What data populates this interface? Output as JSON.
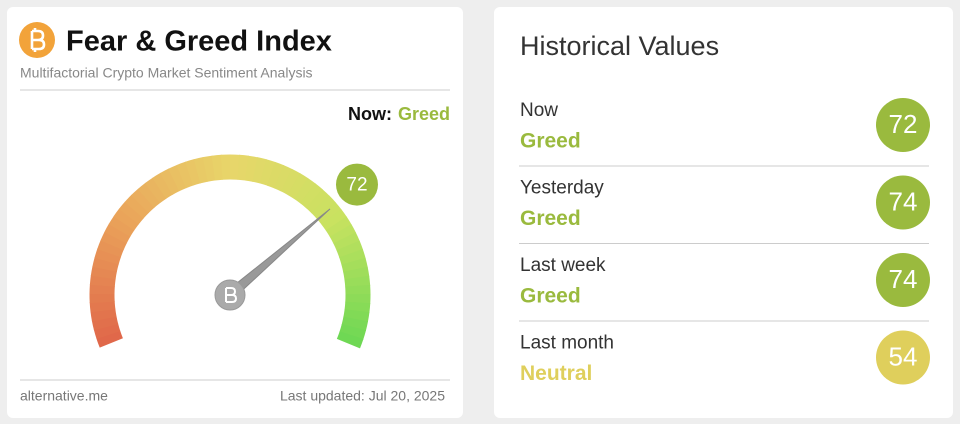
{
  "header": {
    "title": "Fear & Greed Index",
    "subtitle": "Multifactorial Crypto Market Sentiment Analysis"
  },
  "now": {
    "label": "Now:",
    "classification": "Greed",
    "color": "#9aba3e"
  },
  "gauge": {
    "value": 72,
    "range": [
      0,
      100
    ],
    "color": "#9aba3e"
  },
  "footer": {
    "source": "alternative.me",
    "updated": "Last updated: Jul 20, 2025"
  },
  "historical": {
    "title": "Historical Values",
    "items": [
      {
        "period": "Now",
        "classification": "Greed",
        "value": 72,
        "color": "#9aba3e"
      },
      {
        "period": "Yesterday",
        "classification": "Greed",
        "value": 74,
        "color": "#9aba3e"
      },
      {
        "period": "Last week",
        "classification": "Greed",
        "value": 74,
        "color": "#9aba3e"
      },
      {
        "period": "Last month",
        "classification": "Neutral",
        "value": 54,
        "color": "#dfcf5c"
      }
    ]
  }
}
